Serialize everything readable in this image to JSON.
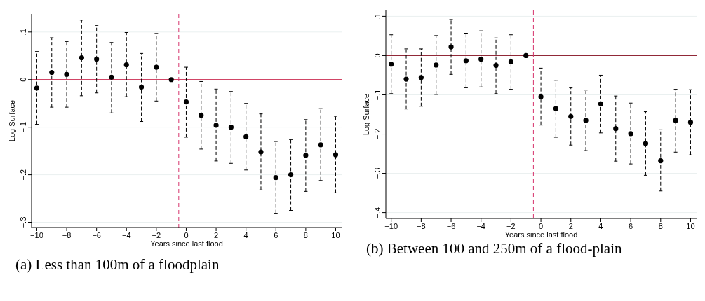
{
  "chart_data": [
    {
      "type": "scatter",
      "title": "(a) Less than 100m of a floodplain",
      "xlabel": "Years since last flood",
      "ylabel": "Log Surface",
      "x": [
        -10,
        -9,
        -8,
        -7,
        -6,
        -5,
        -4,
        -3,
        -2,
        -1,
        0,
        1,
        2,
        3,
        4,
        5,
        6,
        7,
        8,
        9,
        10
      ],
      "series": [
        {
          "color": "#000000",
          "values": [
            -0.018,
            0.015,
            0.011,
            0.046,
            0.043,
            0.005,
            0.031,
            -0.016,
            0.026,
            0,
            -0.047,
            -0.075,
            -0.096,
            -0.1,
            -0.12,
            -0.152,
            -0.206,
            -0.2,
            -0.159,
            -0.137,
            -0.158
          ],
          "errors": [
            [
              -0.094,
              0.059
            ],
            [
              -0.058,
              0.088
            ],
            [
              -0.058,
              0.08
            ],
            [
              -0.034,
              0.125
            ],
            [
              -0.028,
              0.114
            ],
            [
              -0.07,
              0.078
            ],
            [
              -0.036,
              0.099
            ],
            [
              -0.088,
              0.055
            ],
            [
              -0.045,
              0.097
            ],
            null,
            [
              -0.121,
              0.026
            ],
            [
              -0.146,
              -0.004
            ],
            [
              -0.171,
              -0.02
            ],
            [
              -0.176,
              -0.025
            ],
            [
              -0.19,
              -0.05
            ],
            [
              -0.232,
              -0.072
            ],
            [
              -0.281,
              -0.13
            ],
            [
              -0.275,
              -0.126
            ],
            [
              -0.235,
              -0.084
            ],
            [
              -0.212,
              -0.061
            ],
            [
              -0.238,
              -0.077
            ]
          ]
        }
      ],
      "marker": "circle",
      "xlim": [
        -10.35,
        10.4
      ],
      "xticks": [
        {
          "value": -10,
          "label": "−10"
        },
        {
          "value": -8,
          "label": "−8"
        },
        {
          "value": -6,
          "label": "−6"
        },
        {
          "value": -4,
          "label": "−4"
        },
        {
          "value": -2,
          "label": "−2"
        },
        0,
        2,
        4,
        6,
        8,
        10
      ],
      "ylim": [
        -0.311,
        0.138
      ],
      "yticks": [
        {
          "value": -0.3,
          "label": "−.3"
        },
        {
          "value": -0.2,
          "label": "−.2"
        },
        {
          "value": -0.1,
          "label": "−.1"
        },
        0,
        {
          "value": 0.1,
          "label": ".1"
        }
      ],
      "grid": "y",
      "ref_lines": [
        {
          "axis": "y",
          "value": 0,
          "color": "#c8103c",
          "line_style": "solid"
        },
        {
          "axis": "x",
          "value": -0.5,
          "color": "#d6336c",
          "line_style": "dashed"
        }
      ]
    },
    {
      "type": "scatter",
      "title": "(b) Between 100 and 250m of a flood-plain",
      "xlabel": "Years since last flood",
      "ylabel": "Log Surface",
      "x": [
        -10,
        -9,
        -8,
        -7,
        -6,
        -5,
        -4,
        -3,
        -2,
        -1,
        0,
        1,
        2,
        3,
        4,
        5,
        6,
        7,
        8,
        9,
        10
      ],
      "series": [
        {
          "color": "#000000",
          "values": [
            -0.022,
            -0.06,
            -0.056,
            -0.024,
            0.022,
            -0.013,
            -0.009,
            -0.025,
            -0.016,
            0,
            -0.105,
            -0.135,
            -0.155,
            -0.165,
            -0.123,
            -0.186,
            -0.199,
            -0.224,
            -0.268,
            -0.165,
            -0.17
          ],
          "errors": [
            [
              -0.097,
              0.053
            ],
            [
              -0.136,
              0.017
            ],
            [
              -0.129,
              0.017
            ],
            [
              -0.099,
              0.051
            ],
            [
              -0.048,
              0.092
            ],
            [
              -0.082,
              0.057
            ],
            [
              -0.08,
              0.063
            ],
            [
              -0.097,
              0.045
            ],
            [
              -0.086,
              0.053
            ],
            null,
            [
              -0.177,
              -0.032
            ],
            [
              -0.208,
              -0.063
            ],
            [
              -0.228,
              -0.082
            ],
            [
              -0.242,
              -0.088
            ],
            [
              -0.197,
              -0.05
            ],
            [
              -0.269,
              -0.103
            ],
            [
              -0.276,
              -0.121
            ],
            [
              -0.305,
              -0.143
            ],
            [
              -0.345,
              -0.189
            ],
            [
              -0.246,
              -0.086
            ],
            [
              -0.253,
              -0.087
            ]
          ]
        }
      ],
      "marker": "circle",
      "xlim": [
        -10.36,
        10.4
      ],
      "xticks": [
        {
          "value": -10,
          "label": "−10"
        },
        {
          "value": -8,
          "label": "−8"
        },
        {
          "value": -6,
          "label": "−6"
        },
        {
          "value": -4,
          "label": "−4"
        },
        {
          "value": -2,
          "label": "−2"
        },
        0,
        2,
        4,
        6,
        8,
        10
      ],
      "ylim": [
        -0.415,
        0.115
      ],
      "yticks": [
        {
          "value": -0.4,
          "label": "−.4"
        },
        {
          "value": -0.3,
          "label": "−.3"
        },
        {
          "value": -0.2,
          "label": "−.2"
        },
        {
          "value": -0.1,
          "label": "−.1"
        },
        0,
        {
          "value": 0.1,
          "label": ".1"
        }
      ],
      "grid": "y",
      "ref_lines": [
        {
          "axis": "y",
          "value": 0,
          "color": "#8c1c2c",
          "line_style": "solid"
        },
        {
          "axis": "x",
          "value": -0.5,
          "color": "#d6336c",
          "line_style": "dashed"
        }
      ]
    }
  ]
}
